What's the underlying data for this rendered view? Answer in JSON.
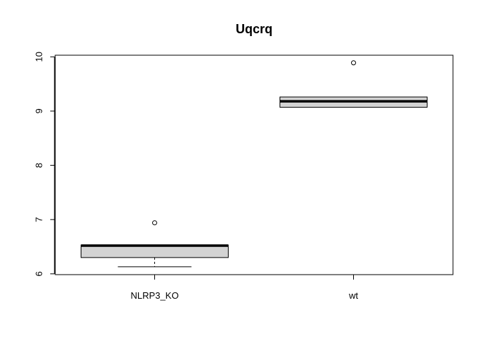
{
  "chart_data": {
    "type": "boxplot",
    "title": "Uqcrq",
    "xlabel": "",
    "ylabel": "",
    "ylim": [
      5.985,
      10.03
    ],
    "yticks": [
      6,
      7,
      8,
      9,
      10
    ],
    "yticks_labels": [
      "6",
      "7",
      "8",
      "9",
      "10"
    ],
    "categories": [
      "NLRP3_KO",
      "wt"
    ],
    "boxes": [
      {
        "name": "NLRP3_KO",
        "min": 6.13,
        "q1": 6.3,
        "median": 6.52,
        "q3": 6.53,
        "max": 6.53,
        "outliers": [
          6.94
        ]
      },
      {
        "name": "wt",
        "min": 9.07,
        "q1": 9.07,
        "median": 9.18,
        "q3": 9.26,
        "max": 9.26,
        "outliers": [
          9.89
        ]
      }
    ],
    "box_fill": "#d3d3d3",
    "grid": false,
    "legend": "none"
  }
}
